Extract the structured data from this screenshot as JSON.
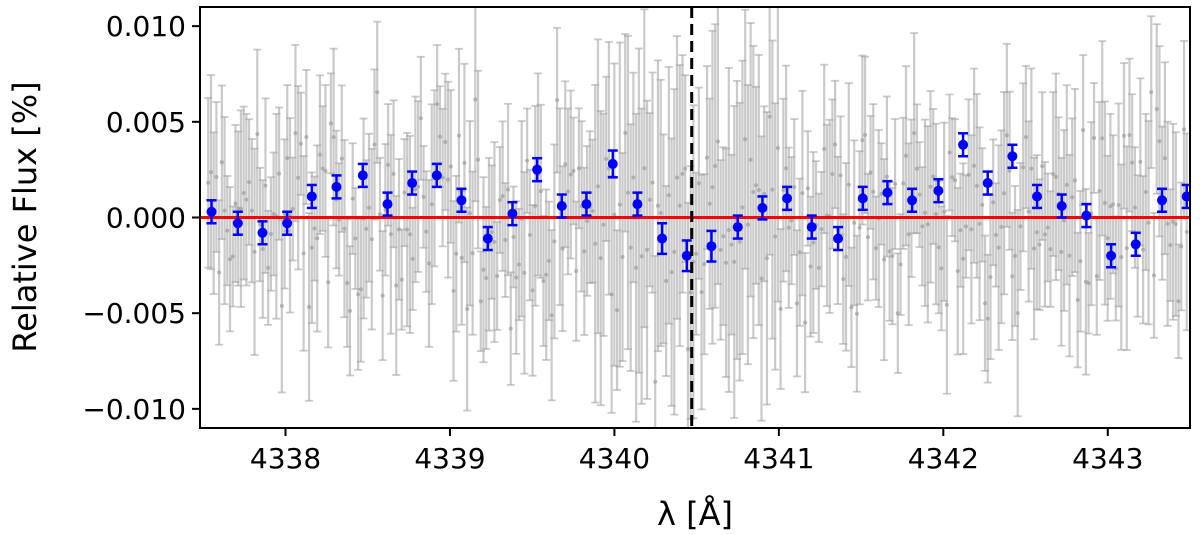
{
  "chart_data": {
    "type": "scatter",
    "xlabel": "λ [Å]",
    "ylabel": "Relative Flux [%]",
    "xlim": [
      4337.48,
      4343.5
    ],
    "ylim": [
      -0.011,
      0.011
    ],
    "xticks": [
      4338,
      4339,
      4340,
      4341,
      4342,
      4343
    ],
    "xtick_labels": [
      "4338",
      "4339",
      "4340",
      "4341",
      "4342",
      "4343"
    ],
    "yticks": [
      0.01,
      0.005,
      0.0,
      -0.005,
      -0.01
    ],
    "ytick_labels": [
      "0.010",
      "0.005",
      "0.000",
      "−0.005",
      "−0.010"
    ],
    "grid": false,
    "vline": {
      "x": 4340.47,
      "style": "dashed",
      "color": "#000000"
    },
    "hline": {
      "y": 0.0,
      "color": "#ff0000"
    },
    "colors": {
      "binned": "#0000ff",
      "unbinned": "#9e9e9e",
      "reference": "#ff0000"
    },
    "unbinned": {
      "count": 360,
      "approx_error": 0.004
    },
    "series": [
      {
        "x": [
          4337.55,
          4337.71,
          4337.86,
          4338.01,
          4338.16,
          4338.31,
          4338.47,
          4338.62,
          4338.77,
          4338.92,
          4339.07,
          4339.23,
          4339.38,
          4339.53,
          4339.68,
          4339.83,
          4339.99,
          4340.14,
          4340.29,
          4340.44,
          4340.59,
          4340.75,
          4340.9,
          4341.05,
          4341.2,
          4341.36,
          4341.51,
          4341.66,
          4341.81,
          4341.97,
          4342.12,
          4342.27,
          4342.42,
          4342.57,
          4342.72,
          4342.87,
          4343.02,
          4343.17,
          4343.33,
          4343.48
        ],
        "y": [
          0.0003,
          -0.0003,
          -0.0008,
          -0.0003,
          0.0011,
          0.0016,
          0.0022,
          0.0007,
          0.0018,
          0.0022,
          0.0009,
          -0.0011,
          0.0002,
          0.0025,
          0.0006,
          0.0007,
          0.0028,
          0.0007,
          -0.0011,
          -0.002,
          -0.0015,
          -0.0005,
          0.0005,
          0.001,
          -0.0005,
          -0.0011,
          0.001,
          0.0013,
          0.0009,
          0.0014,
          0.0038,
          0.0018,
          0.0032,
          0.0011,
          0.0006,
          0.0001,
          -0.002,
          -0.0014,
          0.0009,
          0.0011
        ],
        "yerr": [
          0.0006,
          0.0006,
          0.0006,
          0.0006,
          0.0006,
          0.0006,
          0.0006,
          0.0006,
          0.0006,
          0.0006,
          0.0006,
          0.0006,
          0.0006,
          0.0006,
          0.0006,
          0.0006,
          0.0007,
          0.0006,
          0.0008,
          0.0008,
          0.0008,
          0.0006,
          0.0006,
          0.0006,
          0.0006,
          0.0006,
          0.0006,
          0.0006,
          0.0006,
          0.0006,
          0.0006,
          0.0006,
          0.0006,
          0.0006,
          0.0006,
          0.0006,
          0.0006,
          0.0006,
          0.0006,
          0.0006
        ]
      }
    ]
  }
}
